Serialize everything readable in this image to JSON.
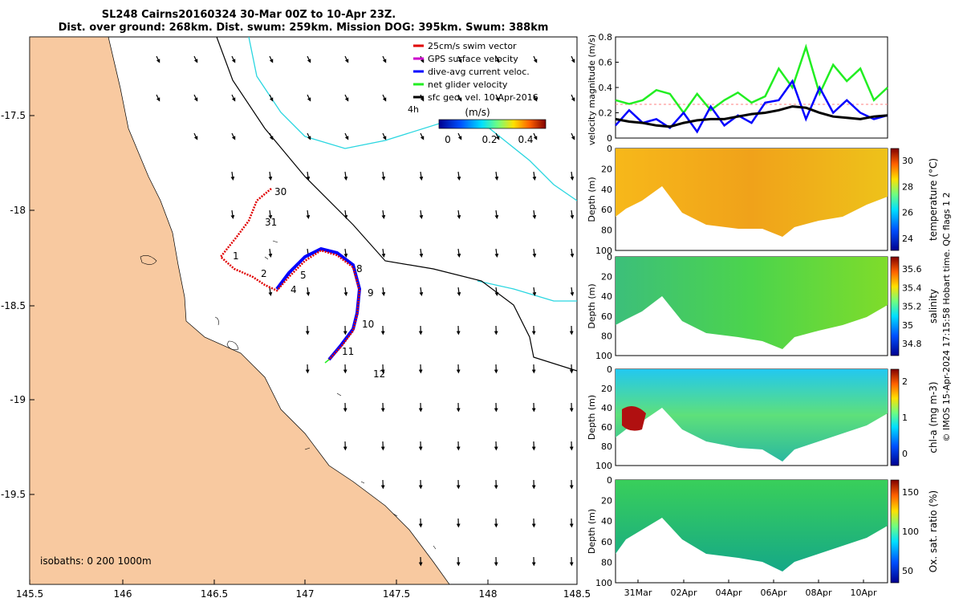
{
  "title": {
    "line1": "SL248 Cairns20160324 30-Mar 00Z to 10-Apr 23Z.",
    "line2": "Dist. over ground: 268km. Dist. swum: 259km. Mission DOG: 395km. Swum: 388km"
  },
  "colors": {
    "land": "#f8c9a0",
    "track_red": "#e00000",
    "track_blue": "#0000ff",
    "cyan_isobath": "#29d6e0",
    "green": "#22ee22",
    "black": "#000000"
  },
  "map": {
    "x_ticks": [
      "145.5",
      "146",
      "146.5",
      "147",
      "147.5",
      "148",
      "148.5"
    ],
    "y_ticks": [
      "-17.5",
      "-18",
      "-18.5",
      "-19",
      "-19.5"
    ],
    "isobath_note": "isobaths: 0   200  1000m",
    "legend": [
      {
        "label": "25cm/s swim vector",
        "color": "#e00000"
      },
      {
        "label": "GPS surface velocity",
        "color": "#cc00cc"
      },
      {
        "label": "dive-avg current veloc.",
        "color": "#0000ff"
      },
      {
        "label": "net glider velocity",
        "color": "#22ee22"
      },
      {
        "label": "sfc geo. vel. 10-Apr-2016",
        "color": "#000000"
      }
    ],
    "legend_tag": "4h",
    "colorbar_label": "(m/s)",
    "colorbar_ticks": [
      "0",
      "0.2",
      "0.4"
    ],
    "day_labels": [
      "30",
      "31",
      "1",
      "2",
      "4",
      "5",
      "8",
      "9",
      "10",
      "11",
      "12"
    ]
  },
  "chart_data": [
    {
      "type": "line",
      "title": "",
      "ylabel": "velocity magnitude (m/s)",
      "ylim": [
        0,
        0.8
      ],
      "yticks": [
        "0",
        "0.2",
        "0.4",
        "0.6",
        "0.8"
      ],
      "series": [
        {
          "name": "net glider velocity",
          "color": "#22ee22",
          "x": [
            0,
            1,
            2,
            3,
            4,
            5,
            6,
            7,
            8,
            9,
            10,
            11,
            12,
            13,
            14,
            15,
            16,
            17,
            18,
            19,
            20
          ],
          "values": [
            0.3,
            0.27,
            0.3,
            0.38,
            0.35,
            0.2,
            0.35,
            0.22,
            0.3,
            0.36,
            0.28,
            0.33,
            0.55,
            0.4,
            0.72,
            0.35,
            0.58,
            0.45,
            0.55,
            0.3,
            0.4
          ]
        },
        {
          "name": "dive-avg current",
          "color": "#0000ff",
          "x": [
            0,
            1,
            2,
            3,
            4,
            5,
            6,
            7,
            8,
            9,
            10,
            11,
            12,
            13,
            14,
            15,
            16,
            17,
            18,
            19,
            20
          ],
          "values": [
            0.1,
            0.22,
            0.12,
            0.15,
            0.08,
            0.2,
            0.05,
            0.25,
            0.1,
            0.18,
            0.12,
            0.28,
            0.3,
            0.45,
            0.15,
            0.4,
            0.2,
            0.3,
            0.2,
            0.15,
            0.18
          ]
        },
        {
          "name": "sfc geo. vel.",
          "color": "#000000",
          "x": [
            0,
            1,
            2,
            3,
            4,
            5,
            6,
            7,
            8,
            9,
            10,
            11,
            12,
            13,
            14,
            15,
            16,
            17,
            18,
            19,
            20
          ],
          "values": [
            0.15,
            0.13,
            0.12,
            0.1,
            0.09,
            0.12,
            0.14,
            0.15,
            0.15,
            0.17,
            0.19,
            0.2,
            0.22,
            0.25,
            0.24,
            0.2,
            0.17,
            0.16,
            0.15,
            0.17,
            0.18
          ]
        }
      ]
    },
    {
      "type": "heatmap",
      "ylabel": "Depth (m)",
      "yticks": [
        "0",
        "20",
        "40",
        "60",
        "80",
        "100"
      ],
      "colorbar_label": "temperature (°C)",
      "colorbar_ticks": [
        "30",
        "28",
        "26",
        "24"
      ]
    },
    {
      "type": "heatmap",
      "ylabel": "Depth (m)",
      "yticks": [
        "0",
        "20",
        "40",
        "60",
        "80",
        "100"
      ],
      "colorbar_label": "salinity",
      "colorbar_ticks": [
        "35.6",
        "35.4",
        "35.2",
        "35",
        "34.8"
      ]
    },
    {
      "type": "heatmap",
      "ylabel": "Depth (m)",
      "yticks": [
        "0",
        "20",
        "40",
        "60",
        "80",
        "100"
      ],
      "colorbar_label": "chl-a (mg m-3)",
      "colorbar_ticks": [
        "2",
        "1",
        "0"
      ]
    },
    {
      "type": "heatmap",
      "ylabel": "Depth (m)",
      "yticks": [
        "0",
        "20",
        "40",
        "60",
        "80",
        "100"
      ],
      "colorbar_label": "Ox. sat. ratio (%)",
      "colorbar_ticks": [
        "150",
        "100",
        "50"
      ],
      "xticks": [
        "31Mar",
        "02Apr",
        "04Apr",
        "06Apr",
        "08Apr",
        "10Apr"
      ]
    }
  ],
  "footer_credit": "© IMOS 15-Apr-2024 17:15:58 Hobart time. QC flags 1  2"
}
